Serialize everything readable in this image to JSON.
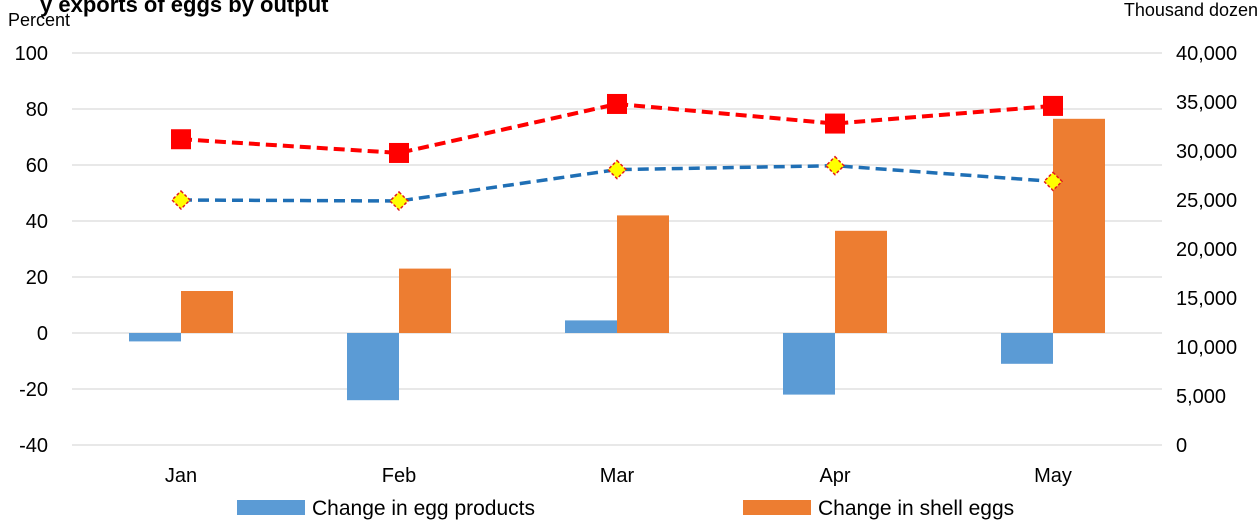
{
  "chart_data": {
    "type": "bar",
    "title": "y exports of eggs by output",
    "categories": [
      "Jan",
      "Feb",
      "Mar",
      "Apr",
      "May"
    ],
    "y_left": {
      "label": "Percent",
      "min": -40,
      "max": 100,
      "ticks": [
        -40,
        -20,
        0,
        20,
        40,
        60,
        80,
        100
      ]
    },
    "y_right": {
      "label": "Thousand dozen",
      "min": 0,
      "max": 40000,
      "ticks": [
        0,
        5000,
        10000,
        15000,
        20000,
        25000,
        30000,
        35000,
        40000
      ],
      "tick_labels": [
        "0",
        "5,000",
        "10,000",
        "15,000",
        "20,000",
        "25,000",
        "30,000",
        "35,000",
        "40,000"
      ]
    },
    "series": [
      {
        "name": "Change in egg products",
        "kind": "bar",
        "axis": "left",
        "color": "#5B9BD5",
        "values": [
          -3,
          -24,
          4.5,
          -22,
          -11
        ]
      },
      {
        "name": "Change in shell eggs",
        "kind": "bar",
        "axis": "left",
        "color": "#ED7D31",
        "values": [
          15,
          23,
          42,
          36.5,
          76.5
        ]
      },
      {
        "name": "",
        "kind": "line",
        "axis": "right",
        "color": "#FF0000",
        "marker": "square",
        "values": [
          31200,
          29800,
          34800,
          32800,
          34600
        ]
      },
      {
        "name": "",
        "kind": "line",
        "axis": "right",
        "color": "#1F6FB5",
        "marker": "diamond",
        "values": [
          25000,
          24900,
          28100,
          28500,
          26900
        ]
      }
    ],
    "grid": true,
    "legend": "bottom"
  }
}
